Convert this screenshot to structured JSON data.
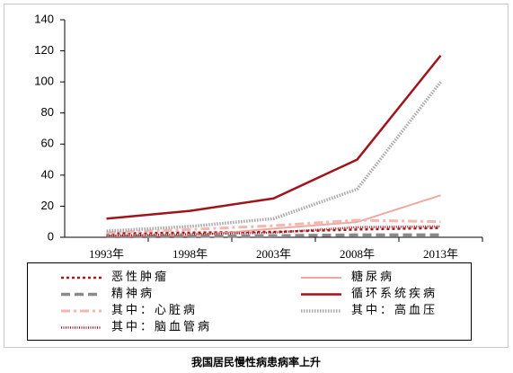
{
  "chart_data": {
    "type": "line",
    "categories": [
      "1993年",
      "1998年",
      "2003年",
      "2008年",
      "2013年"
    ],
    "ylim": [
      0,
      140
    ],
    "yticks": [
      0,
      20,
      40,
      60,
      80,
      100,
      120,
      140
    ],
    "series": [
      {
        "name": "恶性肿瘤",
        "color": "#a31a1e",
        "dash": "3,3",
        "width": 2.5,
        "values": [
          2.5,
          3,
          3.5,
          5,
          6
        ]
      },
      {
        "name": "糖尿病",
        "color": "#f0a8a2",
        "dash": "none",
        "width": 2,
        "values": [
          0.6,
          1,
          5.6,
          9.8,
          27
        ]
      },
      {
        "name": "精神病",
        "color": "#8a8a8a",
        "dash": "10,5",
        "width": 3.5,
        "values": [
          0.5,
          0.6,
          1,
          1.5,
          1.5
        ]
      },
      {
        "name": "循环系统疾病",
        "color": "#a0141c",
        "dash": "none",
        "width": 2.5,
        "values": [
          12,
          17,
          25,
          50,
          117
        ]
      },
      {
        "name": "其中：心脏病",
        "color": "#f4b6b0",
        "dash": "10,4,3,4",
        "width": 3,
        "values": [
          3,
          5,
          7.5,
          11,
          10
        ]
      },
      {
        "name": "其中：高血压",
        "color": "#a8a8a8",
        "dash": "1.5,1.5",
        "width": 3.5,
        "values": [
          4,
          7,
          12,
          31,
          100
        ]
      },
      {
        "name": "其中：脑血管病",
        "color": "#a0141c",
        "dash": "1,1.5",
        "width": 2.5,
        "values": [
          1,
          2,
          3,
          6.5,
          7
        ]
      }
    ],
    "caption": "我国居民慢性病患病率上升"
  }
}
